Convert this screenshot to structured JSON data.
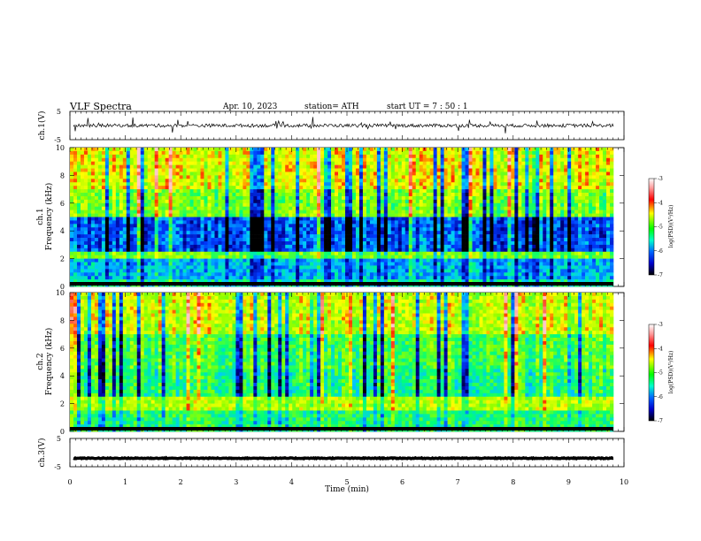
{
  "header": {
    "title": "VLF  Spectra",
    "date": "Apr. 10, 2023",
    "station": "station= ATH",
    "start": "start  UT  =    7  : 50 : 1"
  },
  "colors": {
    "spectrogram_low": "#00007f",
    "spectrogram_mid": "#00ff66",
    "spectrogram_high": "#ff0000",
    "trace": "#000000"
  },
  "chart_data": [
    {
      "type": "line",
      "name": "ch1-waveform",
      "ylabel": "ch.1(V)",
      "ylim": [
        -5,
        5
      ],
      "yticks": [
        "5",
        "-5"
      ],
      "xlim": [
        0,
        10
      ],
      "mean_level": 0,
      "noise_amplitude": 0.6,
      "spike_amplitude": 2.5
    },
    {
      "type": "heatmap",
      "name": "ch1-spectrogram",
      "ylabel": "ch.1\nFrequency  (kHz)",
      "ylim": [
        0,
        10
      ],
      "yticks": [
        "0",
        "2",
        "4",
        "6",
        "8",
        "10"
      ],
      "xlim": [
        0,
        9.8
      ],
      "colorbar": {
        "label": "log(PSD)(V²/Hz)",
        "range": [
          -7,
          -3
        ],
        "ticks": [
          "-3",
          "-4",
          "-5",
          "-6",
          "-7"
        ]
      }
    },
    {
      "type": "heatmap",
      "name": "ch2-spectrogram",
      "ylabel": "ch.2\nFrequency  (kHz)",
      "ylim": [
        0,
        10
      ],
      "yticks": [
        "0",
        "2",
        "4",
        "6",
        "8",
        "10"
      ],
      "xlim": [
        0,
        9.8
      ],
      "colorbar": {
        "label": "log(PSD)(V²/Hz)",
        "range": [
          -7,
          -3
        ],
        "ticks": [
          "-3",
          "-4",
          "-5",
          "-6",
          "-7"
        ]
      }
    },
    {
      "type": "line",
      "name": "ch3-waveform",
      "ylabel": "ch.3(V)",
      "ylim": [
        -5,
        5
      ],
      "yticks": [
        "5",
        "-5"
      ],
      "xlim": [
        0,
        10
      ],
      "mean_level": -2,
      "noise_amplitude": 0.15
    }
  ],
  "xaxis": {
    "label": "Time  (min)",
    "ticks": [
      "0",
      "1",
      "2",
      "3",
      "4",
      "5",
      "6",
      "7",
      "8",
      "9",
      "10"
    ],
    "range": [
      0,
      10
    ]
  },
  "labels": {
    "ch1_ylabel_a": "ch.1",
    "ch1_ylabel_b": "Frequency  (kHz)",
    "ch2_ylabel_a": "ch.2",
    "ch2_ylabel_b": "Frequency  (kHz)",
    "ch1v": "ch.1(V)",
    "ch3v": "ch.3(V)",
    "cb_label": "log(PSD)(V²/Hz)"
  }
}
